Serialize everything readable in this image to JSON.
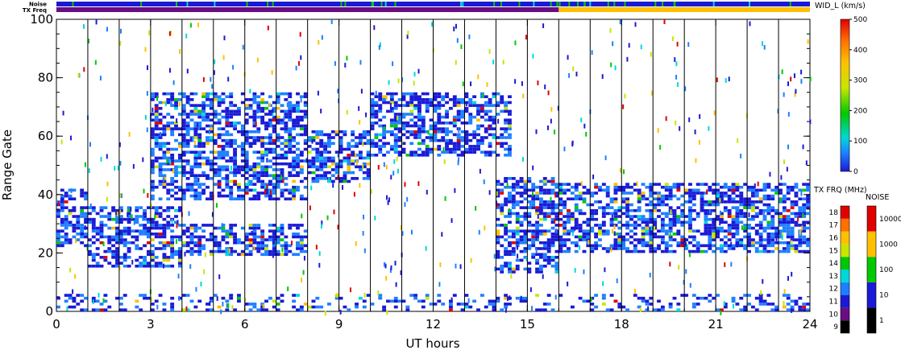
{
  "chart_data": {
    "type": "heatmap",
    "xlabel": "UT hours",
    "ylabel": "Range Gate",
    "xlim": [
      0,
      24
    ],
    "ylim": [
      0,
      100
    ],
    "x_ticks": [
      "0",
      "3",
      "6",
      "9",
      "12",
      "15",
      "18",
      "21",
      "24"
    ],
    "y_ticks": [
      "0",
      "20",
      "40",
      "60",
      "80",
      "100"
    ],
    "strip_labels": {
      "noise": "Noise",
      "txfreq": "TX Freq"
    },
    "bands": [
      {
        "name": "scatter-band-a",
        "x": [
          0.0,
          1.0
        ],
        "lo": 22,
        "hi": 42
      },
      {
        "name": "scatter-band-b",
        "x": [
          1.0,
          4.0
        ],
        "lo": 15,
        "hi": 36
      },
      {
        "name": "scatter-band-c",
        "x": [
          4.0,
          8.0
        ],
        "lo": 19,
        "hi": 30
      },
      {
        "name": "scatter-band-d",
        "x": [
          3.0,
          8.0
        ],
        "lo": 38,
        "hi": 75
      },
      {
        "name": "scatter-band-e",
        "x": [
          8.0,
          10.0
        ],
        "lo": 44,
        "hi": 62
      },
      {
        "name": "scatter-band-f",
        "x": [
          10.0,
          14.5
        ],
        "lo": 53,
        "hi": 75
      },
      {
        "name": "scatter-band-g",
        "x": [
          14.0,
          16.0
        ],
        "lo": 13,
        "hi": 46
      },
      {
        "name": "scatter-band-h",
        "x": [
          16.0,
          24.0
        ],
        "lo": 20,
        "hi": 44
      },
      {
        "name": "ground-band",
        "x": [
          0.0,
          24.0
        ],
        "lo": 0,
        "hi": 6
      }
    ],
    "vel_colorbar": {
      "title": "WID_L (km/s)",
      "ticks": [
        "0",
        "100",
        "200",
        "300",
        "400",
        "500"
      ],
      "range": [
        0,
        500
      ]
    },
    "freq_colorbar": {
      "title": "TX FRQ (MHz)",
      "ticks": [
        "9",
        "10",
        "11",
        "12",
        "13",
        "14",
        "15",
        "16",
        "17",
        "18"
      ],
      "colors": [
        "#000000",
        "#6a0d83",
        "#1a1ad6",
        "#1e80ff",
        "#00d8d8",
        "#00c800",
        "#c8e600",
        "#ffc000",
        "#ff7000",
        "#e00000"
      ]
    },
    "noise_colorbar": {
      "title": "NOISE",
      "ticks": [
        "1",
        "10",
        "100",
        "1000",
        "10000"
      ],
      "colors": [
        "#000000",
        "#1a1ad6",
        "#00c800",
        "#ffc000",
        "#e00000"
      ]
    }
  }
}
